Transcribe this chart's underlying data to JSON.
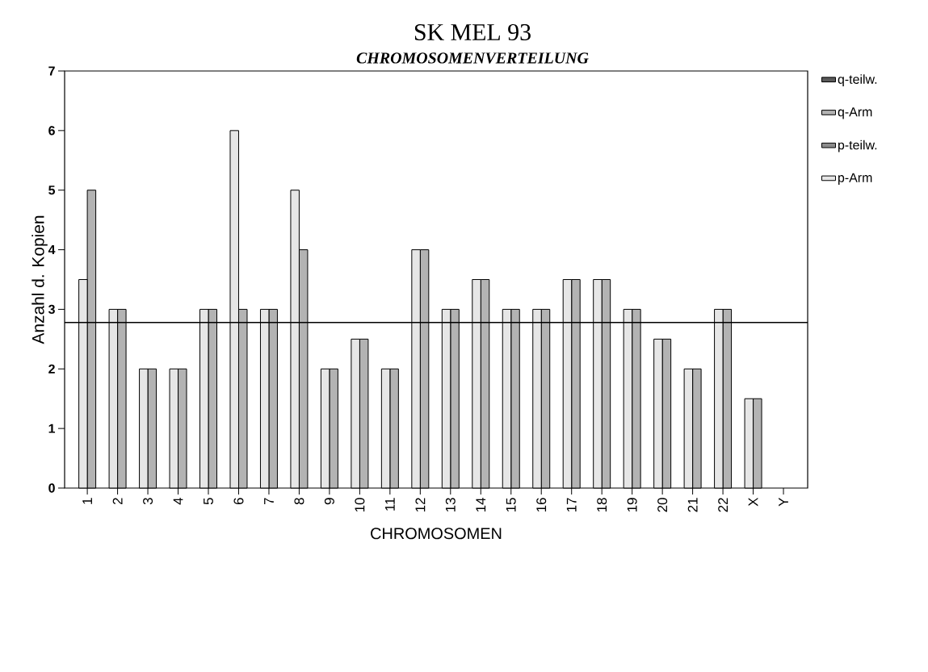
{
  "chart_data": {
    "type": "bar",
    "title": "SK MEL 93",
    "subtitle": "CHROMOSOMENVERTEILUNG",
    "xlabel": "CHROMOSOMEN",
    "ylabel": "Anzahl d. Kopien",
    "categories": [
      "1",
      "2",
      "3",
      "4",
      "5",
      "6",
      "7",
      "8",
      "9",
      "10",
      "11",
      "12",
      "13",
      "14",
      "15",
      "16",
      "17",
      "18",
      "19",
      "20",
      "21",
      "22",
      "X",
      "Y"
    ],
    "series": [
      {
        "name": "p-Arm",
        "color": "#e6e6e6",
        "values": [
          3.5,
          3,
          2,
          2,
          3,
          6,
          3,
          5,
          2,
          2.5,
          2,
          4,
          3,
          3.5,
          3,
          3,
          3.5,
          3.5,
          3,
          2.5,
          2,
          3,
          1.5,
          null
        ]
      },
      {
        "name": "p-teilw.",
        "color": "#8c8c8c",
        "values": [
          null,
          null,
          null,
          null,
          null,
          null,
          null,
          null,
          null,
          null,
          null,
          null,
          null,
          null,
          null,
          null,
          null,
          null,
          null,
          null,
          null,
          null,
          null,
          null
        ]
      },
      {
        "name": "q-Arm",
        "color": "#b3b3b3",
        "values": [
          5,
          3,
          2,
          2,
          3,
          3,
          3,
          4,
          2,
          2.5,
          2,
          4,
          3,
          3.5,
          3,
          3,
          3.5,
          3.5,
          3,
          2.5,
          2,
          3,
          1.5,
          null
        ]
      },
      {
        "name": "q-teilw.",
        "color": "#595959",
        "values": [
          null,
          null,
          null,
          null,
          null,
          null,
          null,
          null,
          null,
          null,
          null,
          null,
          null,
          null,
          null,
          null,
          null,
          null,
          null,
          null,
          null,
          null,
          null,
          null
        ]
      }
    ],
    "ylim": [
      0,
      7
    ],
    "yticks": [
      0,
      1,
      2,
      3,
      4,
      5,
      6,
      7
    ],
    "grid": false,
    "legend": "right",
    "ref_lines": [
      {
        "axis": "y",
        "value": 2.78
      }
    ]
  }
}
